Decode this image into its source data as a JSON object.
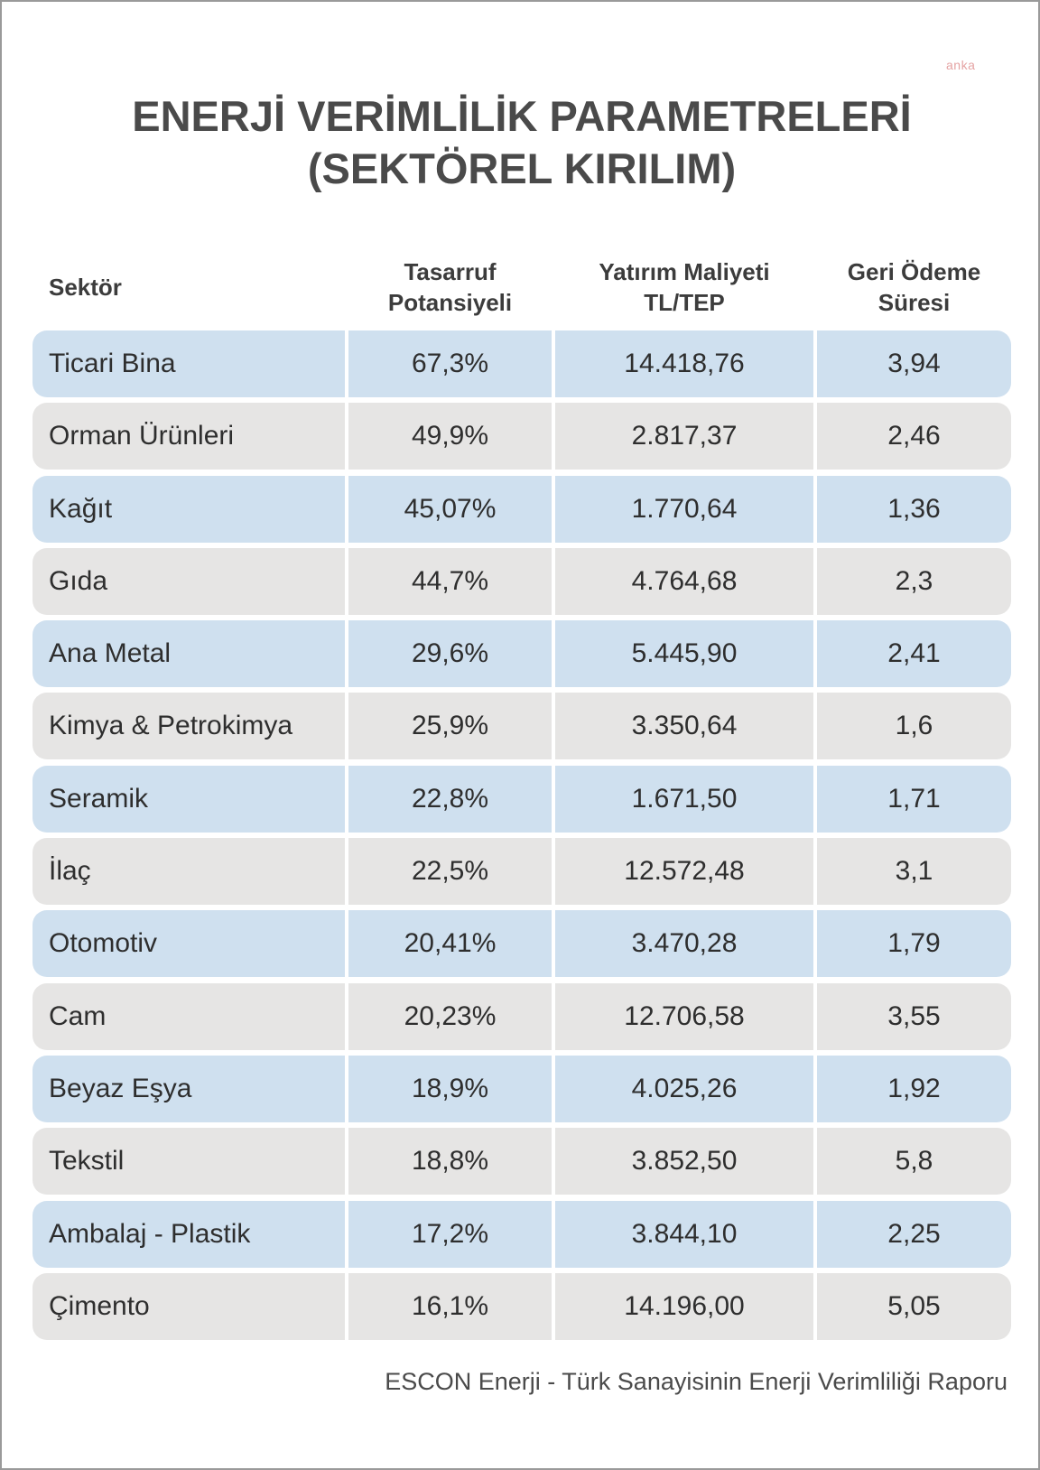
{
  "watermark": "anka",
  "title": {
    "line1": "ENERJİ VERİMLİLİK PARAMETRELERİ",
    "line2": "(SEKTÖREL KIRILIM)"
  },
  "columns": {
    "sector": "Sektör",
    "savings_line1": "Tasarruf",
    "savings_line2": "Potansiyeli",
    "cost_line1": "Yatırım Maliyeti",
    "cost_line2": "TL/TEP",
    "payback_line1": "Geri Ödeme",
    "payback_line2": "Süresi"
  },
  "rows": [
    {
      "sector": "Ticari Bina",
      "savings": "67,3%",
      "cost": "14.418,76",
      "payback": "3,94"
    },
    {
      "sector": "Orman Ürünleri",
      "savings": "49,9%",
      "cost": "2.817,37",
      "payback": "2,46"
    },
    {
      "sector": "Kağıt",
      "savings": "45,07%",
      "cost": "1.770,64",
      "payback": "1,36"
    },
    {
      "sector": "Gıda",
      "savings": "44,7%",
      "cost": "4.764,68",
      "payback": "2,3"
    },
    {
      "sector": "Ana Metal",
      "savings": "29,6%",
      "cost": "5.445,90",
      "payback": "2,41"
    },
    {
      "sector": "Kimya & Petrokimya",
      "savings": "25,9%",
      "cost": "3.350,64",
      "payback": "1,6"
    },
    {
      "sector": "Seramik",
      "savings": "22,8%",
      "cost": "1.671,50",
      "payback": "1,71"
    },
    {
      "sector": "İlaç",
      "savings": "22,5%",
      "cost": "12.572,48",
      "payback": "3,1"
    },
    {
      "sector": "Otomotiv",
      "savings": "20,41%",
      "cost": "3.470,28",
      "payback": "1,79"
    },
    {
      "sector": "Cam",
      "savings": "20,23%",
      "cost": "12.706,58",
      "payback": "3,55"
    },
    {
      "sector": "Beyaz Eşya",
      "savings": "18,9%",
      "cost": "4.025,26",
      "payback": "1,92"
    },
    {
      "sector": "Tekstil",
      "savings": "18,8%",
      "cost": "3.852,50",
      "payback": "5,8"
    },
    {
      "sector": "Ambalaj - Plastik",
      "savings": "17,2%",
      "cost": "3.844,10",
      "payback": "2,25"
    },
    {
      "sector": "Çimento",
      "savings": "16,1%",
      "cost": "14.196,00",
      "payback": "5,05"
    }
  ],
  "source": "ESCON Enerji - Türk Sanayisinin Enerji Verimliliği Raporu",
  "colors": {
    "row_blue": "#cfe0ef",
    "row_gray": "#e6e5e4",
    "title": "#4a4a4a",
    "watermark": "#e5a3a3"
  }
}
